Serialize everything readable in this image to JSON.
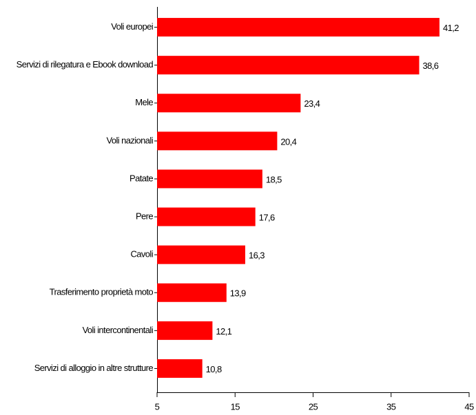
{
  "chart_data": {
    "type": "bar",
    "orientation": "horizontal",
    "categories": [
      "Voli europei",
      "Servizi di rilegatura e Ebook download",
      "Mele",
      "Voli nazionali",
      "Patate",
      "Pere",
      "Cavoli",
      "Trasferimento proprietà moto",
      "Voli intercontinentali",
      "Servizi di alloggio in altre strutture"
    ],
    "values": [
      41.2,
      38.6,
      23.4,
      20.4,
      18.5,
      17.6,
      16.3,
      13.9,
      12.1,
      10.8
    ],
    "value_labels": [
      "41,2",
      "38,6",
      "23,4",
      "20,4",
      "18,5",
      "17,6",
      "16,3",
      "13,9",
      "12,1",
      "10,8"
    ],
    "color": "#ff0000",
    "xlim": [
      5,
      45
    ],
    "xticks": [
      5,
      15,
      25,
      35,
      45
    ]
  }
}
